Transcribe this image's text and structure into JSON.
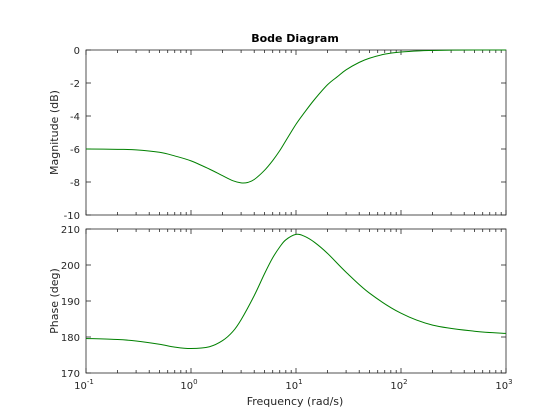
{
  "figure": {
    "title": "Bode Diagram",
    "xlabel": "Frequency  (rad/s)",
    "colors": {
      "axes": "#262626",
      "tick_text": "#262626",
      "line": "#008000",
      "background": "#ffffff"
    }
  },
  "chart_data": [
    {
      "type": "line",
      "panel": "magnitude",
      "title": "Bode Diagram",
      "ylabel": "Magnitude (dB)",
      "xlabel": "",
      "xscale": "log",
      "xlim": [
        0.1,
        1000
      ],
      "ylim": [
        -10,
        0
      ],
      "yticks": [
        0,
        -2,
        -4,
        -6,
        -8,
        -10
      ],
      "ytick_labels": [
        "0",
        "-2",
        "-4",
        "-6",
        "-8",
        "-10"
      ],
      "xticks": [
        0.1,
        1,
        10,
        100,
        1000
      ],
      "grid": false,
      "series": [
        {
          "color": "#008000",
          "x": [
            0.1,
            0.2,
            0.3,
            0.5,
            0.7,
            1.0,
            1.5,
            2.0,
            2.5,
            3.0,
            3.5,
            4.0,
            5.0,
            6.0,
            7.0,
            8.0,
            10.0,
            12.0,
            15.0,
            20.0,
            25.0,
            30.0,
            40.0,
            50.0,
            70.0,
            100.0,
            150.0,
            200.0,
            300.0,
            500.0,
            1000.0
          ],
          "y": [
            -6.0,
            -6.02,
            -6.05,
            -6.2,
            -6.42,
            -6.72,
            -7.22,
            -7.62,
            -7.92,
            -8.05,
            -8.02,
            -7.85,
            -7.3,
            -6.7,
            -6.1,
            -5.5,
            -4.5,
            -3.8,
            -3.0,
            -2.1,
            -1.6,
            -1.2,
            -0.75,
            -0.5,
            -0.25,
            -0.12,
            -0.05,
            -0.03,
            -0.01,
            0.0,
            0.0
          ]
        }
      ]
    },
    {
      "type": "line",
      "panel": "phase",
      "ylabel": "Phase (deg)",
      "xlabel": "Frequency  (rad/s)",
      "xscale": "log",
      "xlim": [
        0.1,
        1000
      ],
      "ylim": [
        170,
        210
      ],
      "yticks": [
        170,
        180,
        190,
        200,
        210
      ],
      "xticks": [
        0.1,
        1,
        10,
        100,
        1000
      ],
      "xtick_labels": [
        {
          "base": "10",
          "exp": "-1"
        },
        {
          "base": "10",
          "exp": "0"
        },
        {
          "base": "10",
          "exp": "1"
        },
        {
          "base": "10",
          "exp": "2"
        },
        {
          "base": "10",
          "exp": "3"
        }
      ],
      "grid": false,
      "series": [
        {
          "color": "#008000",
          "x": [
            0.1,
            0.2,
            0.3,
            0.5,
            0.7,
            1.0,
            1.5,
            2.0,
            2.5,
            3.0,
            4.0,
            5.0,
            6.0,
            7.0,
            8.0,
            10.0,
            12.0,
            15.0,
            20.0,
            30.0,
            50.0,
            100.0,
            200.0,
            500.0,
            1000.0
          ],
          "y": [
            179.6,
            179.3,
            178.9,
            178.0,
            177.2,
            176.8,
            177.3,
            179.0,
            181.5,
            184.8,
            191.5,
            197.5,
            202.0,
            205.0,
            207.0,
            208.5,
            208.0,
            206.3,
            203.2,
            198.0,
            192.2,
            186.6,
            183.3,
            181.6,
            181.0
          ]
        }
      ]
    }
  ]
}
